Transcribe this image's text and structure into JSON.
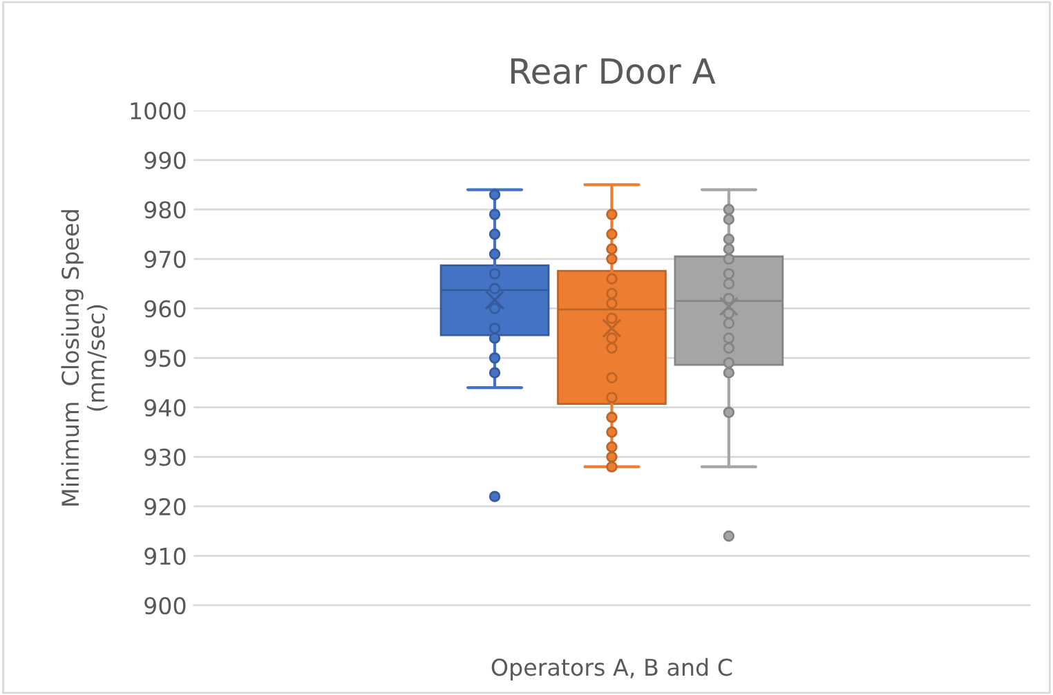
{
  "chart_data": {
    "type": "box",
    "title": "Rear Door A",
    "xlabel": "Operators A, B and C",
    "ylabel": "Minimum  Closiung Speed\n(mm/sec)",
    "categories": [
      null
    ],
    "series": [
      {
        "color": "#4472c4",
        "boxes": [
          {
            "low": 944,
            "q1": 954.6,
            "median": 963.7,
            "q3": 968.7,
            "high": 984,
            "mean": 961.7,
            "outliers": [
              983,
              979,
              975,
              971,
              967,
              964,
              960,
              956,
              954,
              950,
              947,
              922
            ]
          }
        ]
      },
      {
        "color": "#ed7d31",
        "boxes": [
          {
            "low": 928,
            "q1": 940.7,
            "median": 959.8,
            "q3": 967.6,
            "high": 985,
            "mean": 956,
            "outliers": [
              979,
              975,
              972,
              970,
              966,
              963,
              961,
              958,
              954,
              952,
              946,
              942,
              938,
              935,
              932,
              930,
              928
            ]
          }
        ]
      },
      {
        "color": "#a5a5a5",
        "boxes": [
          {
            "low": 928,
            "q1": 948.6,
            "median": 961.5,
            "q3": 970.5,
            "high": 984,
            "mean": 960.4,
            "outliers": [
              980,
              978,
              974,
              972,
              970,
              967,
              965,
              962,
              959,
              957,
              954,
              952,
              949,
              947,
              939,
              914
            ]
          }
        ]
      }
    ],
    "ylim": [
      900,
      1000
    ],
    "yticks": [
      900,
      910,
      920,
      930,
      940,
      950,
      960,
      970,
      980,
      990,
      1000
    ],
    "grid": "y",
    "legend": false,
    "tick_labels": "y"
  }
}
